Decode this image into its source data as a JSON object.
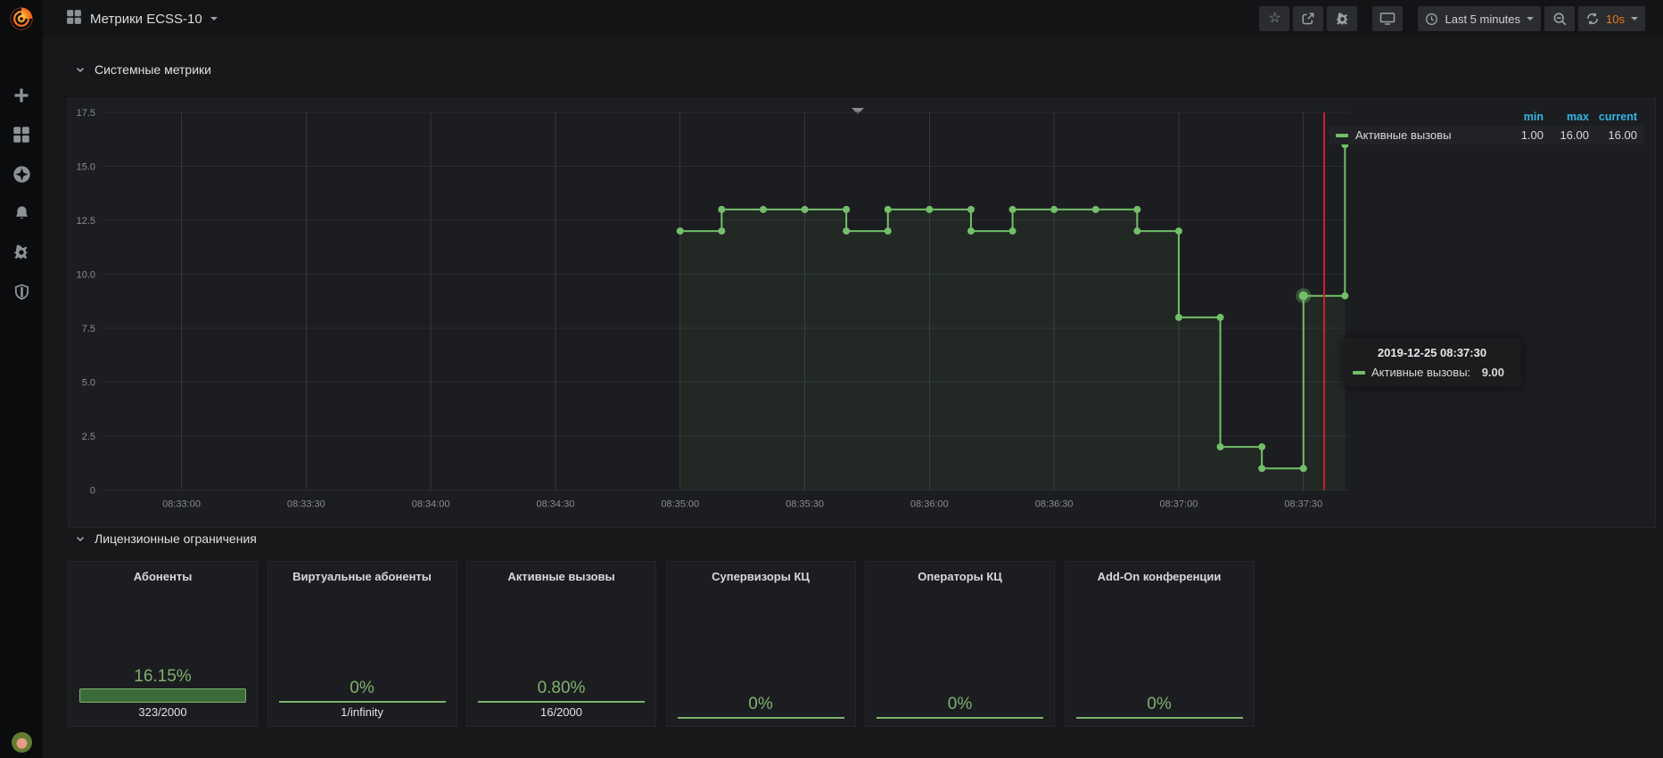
{
  "navbar": {
    "title": "Метрики ECSS-10",
    "buttons": [
      {
        "id": "mark-favorite",
        "icon": "star-icon"
      },
      {
        "id": "share-dashboard",
        "icon": "share-icon"
      },
      {
        "id": "dashboard-settings",
        "icon": "gear-icon"
      },
      {
        "id": "cycle-view-mode",
        "icon": "monitor-icon"
      }
    ],
    "time_picker": {
      "label": "Last 5 minutes",
      "icon": "clock-icon"
    },
    "zoom_out": {
      "icon": "magnifier-minus-icon"
    },
    "refresh": {
      "interval": "10s",
      "icon": "refresh-icon",
      "accent": "#eb7b18"
    }
  },
  "sidebar": {
    "items": [
      {
        "id": "create",
        "icon": "plus-icon"
      },
      {
        "id": "dashboards",
        "icon": "apps-grid-icon"
      },
      {
        "id": "explore",
        "icon": "compass-icon"
      },
      {
        "id": "alerting",
        "icon": "bell-icon"
      },
      {
        "id": "configuration",
        "icon": "gear-icon"
      },
      {
        "id": "server-admin",
        "icon": "shield-icon"
      }
    ]
  },
  "rows": [
    {
      "title": "Системные метрики"
    },
    {
      "title": "Лицензионные ограничения"
    }
  ],
  "chart_data": {
    "type": "line",
    "title": "Системные метрики",
    "step": true,
    "grid": true,
    "x_domain": [
      "08:32:41",
      "08:37:41"
    ],
    "ylim": [
      0,
      17.5
    ],
    "y_ticks": [
      "0",
      "2.5",
      "5.0",
      "7.5",
      "10.0",
      "12.5",
      "15.0",
      "17.5"
    ],
    "x_ticks": [
      "08:33:00",
      "08:33:30",
      "08:34:00",
      "08:34:30",
      "08:35:00",
      "08:35:30",
      "08:36:00",
      "08:36:30",
      "08:37:00",
      "08:37:30"
    ],
    "series": [
      {
        "name": "Активные вызовы",
        "color": "#73bf69",
        "points": [
          [
            "08:35:00",
            12
          ],
          [
            "08:35:10",
            13
          ],
          [
            "08:35:20",
            13
          ],
          [
            "08:35:30",
            13
          ],
          [
            "08:35:40",
            12
          ],
          [
            "08:35:50",
            13
          ],
          [
            "08:36:00",
            13
          ],
          [
            "08:36:10",
            12
          ],
          [
            "08:36:20",
            13
          ],
          [
            "08:36:30",
            13
          ],
          [
            "08:36:40",
            13
          ],
          [
            "08:36:50",
            12
          ],
          [
            "08:37:00",
            8
          ],
          [
            "08:37:10",
            2
          ],
          [
            "08:37:20",
            1
          ],
          [
            "08:37:30",
            9
          ],
          [
            "08:37:40",
            16
          ]
        ]
      }
    ],
    "legend": {
      "position": "right-top",
      "columns": [
        "min",
        "max",
        "current"
      ],
      "header_color": "#33b5e5",
      "rows": [
        {
          "name": "Активные вызовы",
          "min": "1.00",
          "max": "16.00",
          "current": "16.00"
        }
      ]
    },
    "annotation": {
      "time": "08:37:35",
      "color": "#d01f2e"
    },
    "highlight": {
      "time": "08:37:30",
      "value": 9
    },
    "tooltip": {
      "timestamp": "2019-12-25 08:37:30",
      "series_name": "Активные вызовы:",
      "value": "9.00"
    }
  },
  "license_row": {
    "accent": "#7eb26d",
    "panels": [
      {
        "title": "Абоненты",
        "percent": "16.15%",
        "fraction": "323/2000",
        "indicator": "bar"
      },
      {
        "title": "Виртуальные абоненты",
        "percent": "0%",
        "fraction": "1/infinity",
        "indicator": "line"
      },
      {
        "title": "Активные вызовы",
        "percent": "0.80%",
        "fraction": "16/2000",
        "indicator": "line"
      },
      {
        "title": "Супервизоры КЦ",
        "percent": "0%",
        "fraction": null,
        "indicator": "line"
      },
      {
        "title": "Операторы КЦ",
        "percent": "0%",
        "fraction": null,
        "indicator": "line"
      },
      {
        "title": "Add-On конференции",
        "percent": "0%",
        "fraction": null,
        "indicator": "line"
      }
    ]
  }
}
